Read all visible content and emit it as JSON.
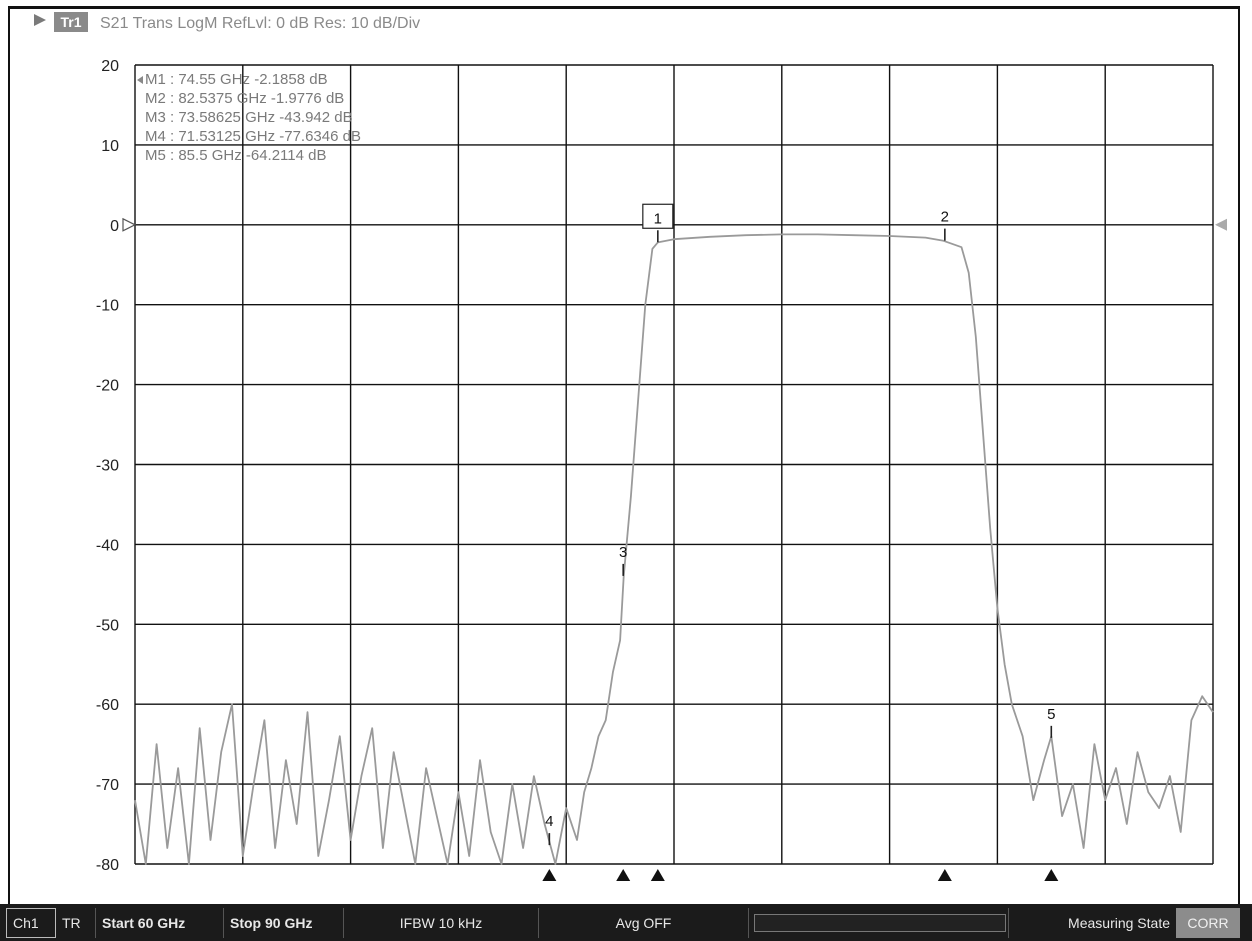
{
  "header": {
    "trace_tag": "Tr1",
    "text": "S21 Trans LogM RefLvl: 0  dB Res: 10  dB/Div"
  },
  "markers_table": [
    "M1  :  74.55 GHz  -2.1858  dB",
    "M2  :  82.5375 GHz  -1.9776  dB",
    "M3  :  73.58625 GHz  -43.942  dB",
    "M4  :  71.53125 GHz  -77.6346  dB",
    "M5  :  85.5 GHz  -64.2114  dB"
  ],
  "status_bar": {
    "channel": "Ch1",
    "trace": "TR",
    "start": "Start 60 GHz",
    "stop": "Stop 90 GHz",
    "ifbw": "IFBW 10 kHz",
    "avg": "Avg OFF",
    "state": "Measuring State",
    "corr": "CORR"
  },
  "colors": {
    "trace": "#9a9a9a",
    "grid": "#111111",
    "text": "#222222",
    "marker_table_text": "#7a7a7a"
  },
  "chart_data": {
    "type": "line",
    "title": "S21 Trans LogM RefLvl: 0  dB Res: 10  dB/Div",
    "xlim": [
      60,
      90
    ],
    "ylim": [
      -80,
      20
    ],
    "yticks": [
      20,
      10,
      0,
      -10,
      -20,
      -30,
      -40,
      -50,
      -60,
      -70,
      -80
    ],
    "x_divisions": 10,
    "grid": true,
    "reference_level": 0,
    "series": [
      {
        "x": [
          60.0,
          60.3,
          60.6,
          60.9,
          61.2,
          61.5,
          61.8,
          62.1,
          62.4,
          62.7,
          63.0,
          63.3,
          63.6,
          63.9,
          64.2,
          64.5,
          64.8,
          65.1,
          65.4,
          65.7,
          66.0,
          66.3,
          66.6,
          66.9,
          67.2,
          67.5,
          67.8,
          68.1,
          68.4,
          68.7,
          69.0,
          69.3,
          69.6,
          69.9,
          70.2,
          70.5,
          70.8,
          71.1,
          71.4,
          71.7,
          72.0,
          72.3,
          72.5,
          72.7,
          72.9,
          73.1,
          73.3,
          73.5,
          73.6,
          73.8,
          74.0,
          74.2,
          74.4,
          74.55,
          75.0,
          76.0,
          77.0,
          78.0,
          79.0,
          80.0,
          81.0,
          82.0,
          82.5,
          83.0,
          83.2,
          83.4,
          83.6,
          83.8,
          84.0,
          84.2,
          84.4,
          84.7,
          85.0,
          85.3,
          85.5,
          85.8,
          86.1,
          86.4,
          86.7,
          87.0,
          87.3,
          87.6,
          87.9,
          88.2,
          88.5,
          88.8,
          89.1,
          89.4,
          89.7,
          90.0
        ],
        "y": [
          -72,
          -80,
          -65,
          -78,
          -68,
          -80,
          -63,
          -77,
          -66,
          -60,
          -79,
          -70,
          -62,
          -78,
          -67,
          -75,
          -61,
          -79,
          -72,
          -64,
          -77,
          -69,
          -63,
          -78,
          -66,
          -73,
          -80,
          -68,
          -74,
          -80,
          -71,
          -79,
          -67,
          -76,
          -80,
          -70,
          -78,
          -69,
          -75,
          -80,
          -73,
          -77,
          -71,
          -68,
          -64,
          -62,
          -56,
          -52,
          -44,
          -34,
          -22,
          -10,
          -3,
          -2.2,
          -1.8,
          -1.5,
          -1.3,
          -1.2,
          -1.2,
          -1.3,
          -1.4,
          -1.6,
          -2.0,
          -2.8,
          -6,
          -14,
          -26,
          -38,
          -48,
          -55,
          -60,
          -64,
          -72,
          -67,
          -64,
          -74,
          -70,
          -78,
          -65,
          -72,
          -68,
          -75,
          -66,
          -71,
          -73,
          -69,
          -76,
          -62,
          -59,
          -61
        ]
      }
    ],
    "markers": [
      {
        "label": "1",
        "x": 74.55,
        "y": -2.1858
      },
      {
        "label": "2",
        "x": 82.5375,
        "y": -1.9776
      },
      {
        "label": "3",
        "x": 73.58625,
        "y": -43.942
      },
      {
        "label": "4",
        "x": 71.53125,
        "y": -77.6346
      },
      {
        "label": "5",
        "x": 85.5,
        "y": -64.2114
      }
    ]
  }
}
